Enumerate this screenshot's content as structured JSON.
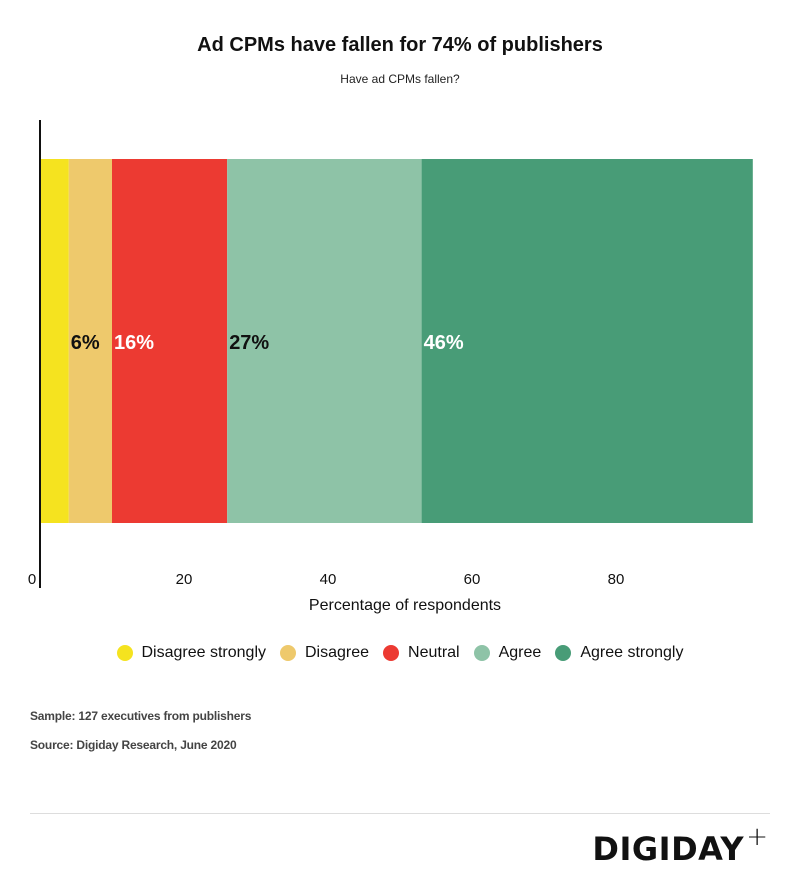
{
  "chart_data": {
    "type": "bar",
    "orientation": "horizontal",
    "stacked": true,
    "title": "Ad CPMs have fallen for 74% of publishers",
    "subtitle": "Have ad CPMs fallen?",
    "xlabel": "Percentage of respondents",
    "ylabel": "",
    "xlim": [
      0,
      100
    ],
    "xticks": [
      0,
      20,
      40,
      60,
      80
    ],
    "xtick_labels": [
      "0",
      "20",
      "40",
      "60",
      "80"
    ],
    "grid": false,
    "legend_position": "bottom",
    "series": [
      {
        "name": "Disagree strongly",
        "value": 4,
        "label": "",
        "color": "#f5e31f",
        "label_color": "#111111"
      },
      {
        "name": "Disagree",
        "value": 6,
        "label": "6%",
        "color": "#eec96c",
        "label_color": "#111111"
      },
      {
        "name": "Neutral",
        "value": 16,
        "label": "16%",
        "color": "#ec3a32",
        "label_color": "#ffffff"
      },
      {
        "name": "Agree",
        "value": 27,
        "label": "27%",
        "color": "#8ec3a7",
        "label_color": "#111111"
      },
      {
        "name": "Agree strongly",
        "value": 46,
        "label": "46%",
        "color": "#489c77",
        "label_color": "#ffffff"
      }
    ]
  },
  "footer": {
    "sample": "Sample: 127 executives from publishers",
    "source": "Source: Digiday Research, June 2020",
    "logo": "DIGIDAY",
    "logo_plus": "+"
  }
}
